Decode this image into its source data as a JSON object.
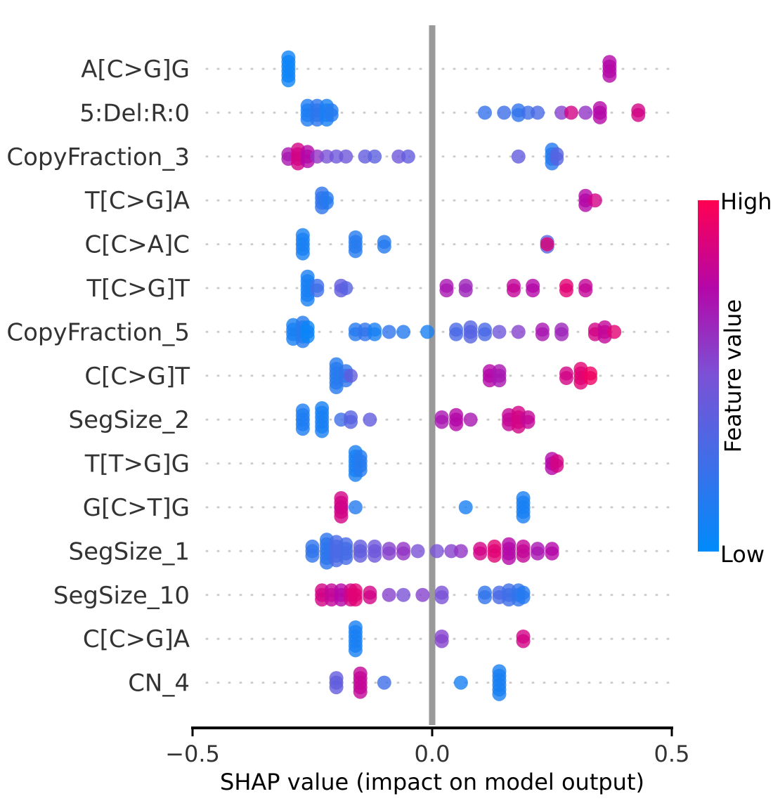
{
  "chart_data": {
    "type": "scatter",
    "subtype": "shap-beeswarm",
    "xlabel": "SHAP value (impact on model output)",
    "xlim": [
      -0.5,
      0.5
    ],
    "xticks": [
      -0.5,
      0.0,
      0.5
    ],
    "xtick_labels": [
      "−0.5",
      "0.0",
      "0.5"
    ],
    "colorbar": {
      "label": "Feature value",
      "high_label": "High",
      "low_label": "Low",
      "high_color": "#ff0052",
      "low_color": "#008bfb"
    },
    "zero_line_color": "#999999",
    "features": [
      {
        "name": "A[C>G]G",
        "points": [
          {
            "x": -0.3,
            "c": 0.05,
            "n": 6
          },
          {
            "x": 0.37,
            "c": 0.75,
            "n": 4
          }
        ]
      },
      {
        "name": "5:Del:R:0",
        "points": [
          {
            "x": -0.26,
            "c": 0.12,
            "n": 4
          },
          {
            "x": -0.24,
            "c": 0.18,
            "n": 4
          },
          {
            "x": -0.22,
            "c": 0.1,
            "n": 4
          },
          {
            "x": -0.21,
            "c": 0.15,
            "n": 2
          },
          {
            "x": 0.11,
            "c": 0.22,
            "n": 1
          },
          {
            "x": 0.15,
            "c": 0.25,
            "n": 1
          },
          {
            "x": 0.18,
            "c": 0.2,
            "n": 2
          },
          {
            "x": 0.2,
            "c": 0.25,
            "n": 1
          },
          {
            "x": 0.22,
            "c": 0.3,
            "n": 1
          },
          {
            "x": 0.27,
            "c": 0.55,
            "n": 1
          },
          {
            "x": 0.29,
            "c": 0.85,
            "n": 1
          },
          {
            "x": 0.32,
            "c": 0.6,
            "n": 1
          },
          {
            "x": 0.35,
            "c": 0.75,
            "n": 3
          },
          {
            "x": 0.43,
            "c": 0.85,
            "n": 2
          }
        ]
      },
      {
        "name": "CopyFraction_3",
        "points": [
          {
            "x": -0.3,
            "c": 0.7,
            "n": 2
          },
          {
            "x": -0.28,
            "c": 0.85,
            "n": 4
          },
          {
            "x": -0.26,
            "c": 0.75,
            "n": 3
          },
          {
            "x": -0.24,
            "c": 0.6,
            "n": 1
          },
          {
            "x": -0.22,
            "c": 0.5,
            "n": 1
          },
          {
            "x": -0.2,
            "c": 0.45,
            "n": 1
          },
          {
            "x": -0.18,
            "c": 0.45,
            "n": 1
          },
          {
            "x": -0.14,
            "c": 0.4,
            "n": 1
          },
          {
            "x": -0.12,
            "c": 0.38,
            "n": 1
          },
          {
            "x": -0.07,
            "c": 0.45,
            "n": 1
          },
          {
            "x": -0.05,
            "c": 0.4,
            "n": 1
          },
          {
            "x": 0.18,
            "c": 0.4,
            "n": 1
          },
          {
            "x": 0.25,
            "c": 0.15,
            "n": 4
          },
          {
            "x": 0.26,
            "c": 0.35,
            "n": 2
          }
        ]
      },
      {
        "name": "T[C>G]A",
        "points": [
          {
            "x": -0.23,
            "c": 0.2,
            "n": 4
          },
          {
            "x": -0.22,
            "c": 0.15,
            "n": 2
          },
          {
            "x": 0.32,
            "c": 0.75,
            "n": 3
          },
          {
            "x": 0.34,
            "c": 0.85,
            "n": 1
          }
        ]
      },
      {
        "name": "C[C>A]C",
        "points": [
          {
            "x": -0.27,
            "c": 0.1,
            "n": 5
          },
          {
            "x": -0.16,
            "c": 0.15,
            "n": 4
          },
          {
            "x": -0.1,
            "c": 0.15,
            "n": 2
          },
          {
            "x": 0.24,
            "c": 0.35,
            "n": 2
          },
          {
            "x": 0.24,
            "c": 0.9,
            "n": 1
          }
        ]
      },
      {
        "name": "T[C>G]T",
        "points": [
          {
            "x": -0.26,
            "c": 0.1,
            "n": 6
          },
          {
            "x": -0.24,
            "c": 0.25,
            "n": 2
          },
          {
            "x": -0.19,
            "c": 0.4,
            "n": 2
          },
          {
            "x": -0.18,
            "c": 0.35,
            "n": 1
          },
          {
            "x": 0.03,
            "c": 0.7,
            "n": 2
          },
          {
            "x": 0.07,
            "c": 0.65,
            "n": 2
          },
          {
            "x": 0.17,
            "c": 0.8,
            "n": 2
          },
          {
            "x": 0.21,
            "c": 0.75,
            "n": 2
          },
          {
            "x": 0.28,
            "c": 0.9,
            "n": 2
          },
          {
            "x": 0.32,
            "c": 0.8,
            "n": 2
          }
        ]
      },
      {
        "name": "CopyFraction_5",
        "points": [
          {
            "x": -0.29,
            "c": 0.1,
            "n": 4
          },
          {
            "x": -0.27,
            "c": 0.15,
            "n": 5
          },
          {
            "x": -0.26,
            "c": 0.05,
            "n": 3
          },
          {
            "x": -0.16,
            "c": 0.15,
            "n": 2
          },
          {
            "x": -0.14,
            "c": 0.2,
            "n": 2
          },
          {
            "x": -0.12,
            "c": 0.1,
            "n": 2
          },
          {
            "x": -0.09,
            "c": 0.2,
            "n": 1
          },
          {
            "x": -0.06,
            "c": 0.15,
            "n": 1
          },
          {
            "x": -0.01,
            "c": 0.1,
            "n": 1
          },
          {
            "x": 0.05,
            "c": 0.3,
            "n": 2
          },
          {
            "x": 0.08,
            "c": 0.35,
            "n": 3
          },
          {
            "x": 0.11,
            "c": 0.3,
            "n": 2
          },
          {
            "x": 0.14,
            "c": 0.45,
            "n": 1
          },
          {
            "x": 0.18,
            "c": 0.55,
            "n": 1
          },
          {
            "x": 0.23,
            "c": 0.7,
            "n": 2
          },
          {
            "x": 0.27,
            "c": 0.65,
            "n": 2
          },
          {
            "x": 0.34,
            "c": 0.85,
            "n": 2
          },
          {
            "x": 0.36,
            "c": 0.8,
            "n": 3
          },
          {
            "x": 0.38,
            "c": 0.9,
            "n": 1
          }
        ]
      },
      {
        "name": "C[C>G]T",
        "points": [
          {
            "x": -0.2,
            "c": 0.15,
            "n": 6
          },
          {
            "x": -0.18,
            "c": 0.2,
            "n": 3
          },
          {
            "x": -0.17,
            "c": 0.4,
            "n": 1
          },
          {
            "x": 0.12,
            "c": 0.75,
            "n": 3
          },
          {
            "x": 0.14,
            "c": 0.7,
            "n": 3
          },
          {
            "x": 0.28,
            "c": 0.85,
            "n": 2
          },
          {
            "x": 0.31,
            "c": 0.9,
            "n": 4
          },
          {
            "x": 0.33,
            "c": 0.95,
            "n": 2
          }
        ]
      },
      {
        "name": "SegSize_2",
        "points": [
          {
            "x": -0.27,
            "c": 0.12,
            "n": 5
          },
          {
            "x": -0.23,
            "c": 0.1,
            "n": 6
          },
          {
            "x": -0.19,
            "c": 0.25,
            "n": 1
          },
          {
            "x": -0.17,
            "c": 0.35,
            "n": 2
          },
          {
            "x": -0.13,
            "c": 0.4,
            "n": 1
          },
          {
            "x": 0.02,
            "c": 0.7,
            "n": 2
          },
          {
            "x": 0.05,
            "c": 0.75,
            "n": 3
          },
          {
            "x": 0.08,
            "c": 0.7,
            "n": 1
          },
          {
            "x": 0.16,
            "c": 0.8,
            "n": 3
          },
          {
            "x": 0.18,
            "c": 0.85,
            "n": 4
          },
          {
            "x": 0.2,
            "c": 0.8,
            "n": 2
          }
        ]
      },
      {
        "name": "T[T>G]G",
        "points": [
          {
            "x": -0.16,
            "c": 0.1,
            "n": 6
          },
          {
            "x": -0.15,
            "c": 0.15,
            "n": 4
          },
          {
            "x": 0.25,
            "c": 0.75,
            "n": 3
          },
          {
            "x": 0.26,
            "c": 0.85,
            "n": 2
          }
        ]
      },
      {
        "name": "G[C>T]G",
        "points": [
          {
            "x": -0.19,
            "c": 0.25,
            "n": 1
          },
          {
            "x": -0.19,
            "c": 0.85,
            "n": 5
          },
          {
            "x": -0.16,
            "c": 0.15,
            "n": 1
          },
          {
            "x": 0.07,
            "c": 0.1,
            "n": 1
          },
          {
            "x": 0.19,
            "c": 0.1,
            "n": 5
          }
        ]
      },
      {
        "name": "SegSize_1",
        "points": [
          {
            "x": -0.25,
            "c": 0.2,
            "n": 3
          },
          {
            "x": -0.22,
            "c": 0.18,
            "n": 6
          },
          {
            "x": -0.2,
            "c": 0.3,
            "n": 5
          },
          {
            "x": -0.18,
            "c": 0.28,
            "n": 4
          },
          {
            "x": -0.15,
            "c": 0.4,
            "n": 3
          },
          {
            "x": -0.12,
            "c": 0.45,
            "n": 3
          },
          {
            "x": -0.09,
            "c": 0.55,
            "n": 2
          },
          {
            "x": -0.06,
            "c": 0.6,
            "n": 2
          },
          {
            "x": -0.03,
            "c": 0.5,
            "n": 1
          },
          {
            "x": 0.01,
            "c": 0.5,
            "n": 1
          },
          {
            "x": 0.04,
            "c": 0.55,
            "n": 1
          },
          {
            "x": 0.06,
            "c": 0.6,
            "n": 1
          },
          {
            "x": 0.1,
            "c": 0.85,
            "n": 2
          },
          {
            "x": 0.13,
            "c": 0.9,
            "n": 3
          },
          {
            "x": 0.16,
            "c": 0.75,
            "n": 4
          },
          {
            "x": 0.19,
            "c": 0.8,
            "n": 3
          },
          {
            "x": 0.22,
            "c": 0.7,
            "n": 2
          },
          {
            "x": 0.25,
            "c": 0.75,
            "n": 2
          }
        ]
      },
      {
        "name": "SegSize_10",
        "points": [
          {
            "x": -0.23,
            "c": 0.85,
            "n": 3
          },
          {
            "x": -0.21,
            "c": 0.8,
            "n": 3
          },
          {
            "x": -0.19,
            "c": 0.75,
            "n": 3
          },
          {
            "x": -0.17,
            "c": 0.85,
            "n": 3
          },
          {
            "x": -0.16,
            "c": 0.9,
            "n": 3
          },
          {
            "x": -0.13,
            "c": 0.85,
            "n": 2
          },
          {
            "x": -0.09,
            "c": 0.55,
            "n": 1
          },
          {
            "x": -0.06,
            "c": 0.5,
            "n": 1
          },
          {
            "x": -0.02,
            "c": 0.55,
            "n": 1
          },
          {
            "x": 0.02,
            "c": 0.5,
            "n": 2
          },
          {
            "x": 0.11,
            "c": 0.2,
            "n": 2
          },
          {
            "x": 0.14,
            "c": 0.3,
            "n": 2
          },
          {
            "x": 0.16,
            "c": 0.25,
            "n": 3
          },
          {
            "x": 0.18,
            "c": 0.2,
            "n": 3
          },
          {
            "x": 0.19,
            "c": 0.15,
            "n": 2
          }
        ]
      },
      {
        "name": "C[C>G]A",
        "points": [
          {
            "x": -0.16,
            "c": 0.1,
            "n": 6
          },
          {
            "x": 0.02,
            "c": 0.55,
            "n": 2
          },
          {
            "x": 0.19,
            "c": 0.85,
            "n": 2
          }
        ]
      },
      {
        "name": "CN_4",
        "points": [
          {
            "x": -0.2,
            "c": 0.4,
            "n": 3
          },
          {
            "x": -0.15,
            "c": 0.8,
            "n": 5
          },
          {
            "x": -0.1,
            "c": 0.25,
            "n": 1
          },
          {
            "x": 0.06,
            "c": 0.1,
            "n": 1
          },
          {
            "x": 0.14,
            "c": 0.1,
            "n": 6
          }
        ]
      }
    ]
  }
}
